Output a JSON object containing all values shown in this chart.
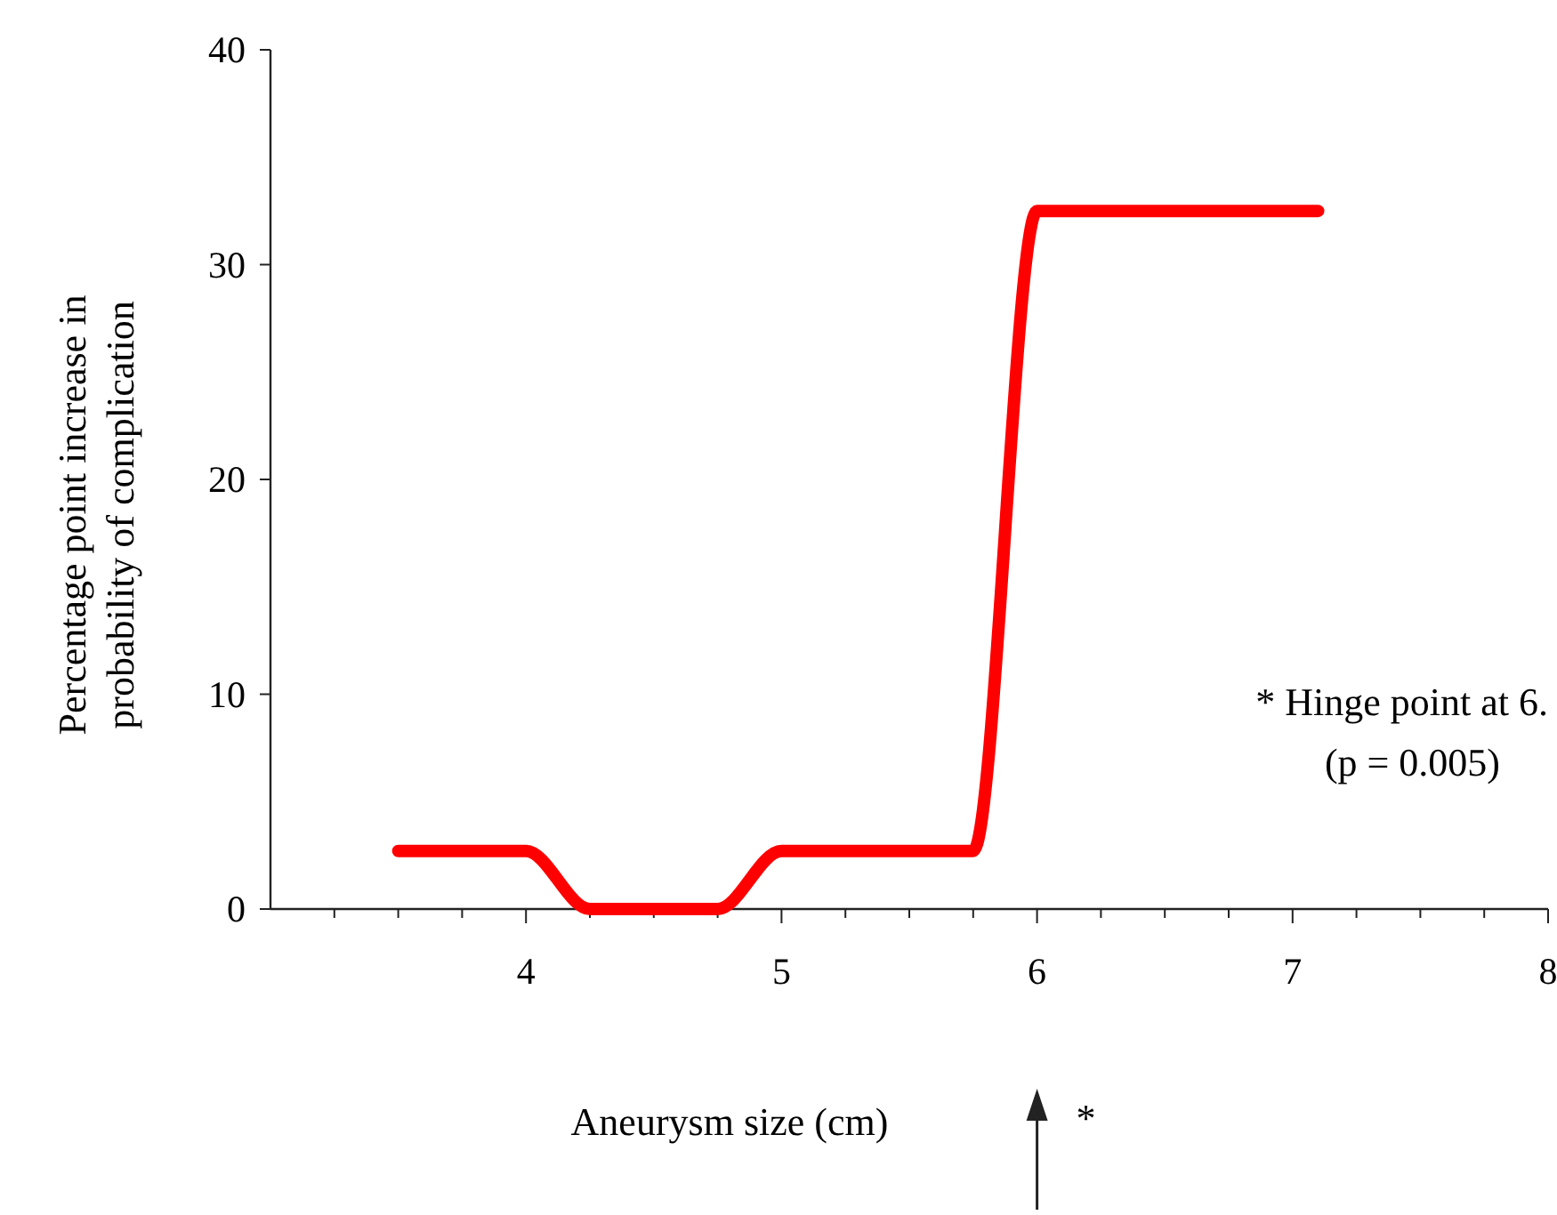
{
  "chart_data": {
    "type": "line",
    "xlabel": "Aneurysm size (cm)",
    "ylabel": "Percentage point increase in\nprobability of complication",
    "xlim": [
      3,
      8
    ],
    "ylim": [
      0,
      40
    ],
    "xticks": [
      {
        "value": 3.25,
        "label": null
      },
      {
        "value": 3.5,
        "label": null
      },
      {
        "value": 3.75,
        "label": null
      },
      4,
      {
        "value": 4.25,
        "label": null
      },
      {
        "value": 4.5,
        "label": null
      },
      {
        "value": 4.75,
        "label": null
      },
      5,
      {
        "value": 5.25,
        "label": null
      },
      {
        "value": 5.5,
        "label": null
      },
      {
        "value": 5.75,
        "label": null
      },
      6,
      {
        "value": 6.25,
        "label": null
      },
      {
        "value": 6.5,
        "label": null
      },
      {
        "value": 6.75,
        "label": null
      },
      7,
      {
        "value": 7.25,
        "label": null
      },
      {
        "value": 7.5,
        "label": null
      },
      {
        "value": 7.75,
        "label": null
      },
      8
    ],
    "yticks": [
      0,
      10,
      20,
      30,
      40
    ],
    "grid": false,
    "series": [
      {
        "color": "#ff0000",
        "line_style": "solid",
        "x": [
          3.5,
          3.75,
          4,
          4.25,
          4.5,
          4.75,
          5,
          5.25,
          5.5,
          5.75,
          6,
          6.25,
          6.5,
          6.75,
          7,
          7.1
        ],
        "values": [
          2.7,
          2.7,
          2.7,
          0,
          0,
          0,
          2.7,
          2.7,
          2.7,
          2.7,
          32.5,
          32.5,
          32.5,
          32.5,
          32.5,
          32.5
        ]
      }
    ],
    "annotations": [
      "* Hinge point at 6.\n(p = 0.005)",
      "*"
    ]
  }
}
